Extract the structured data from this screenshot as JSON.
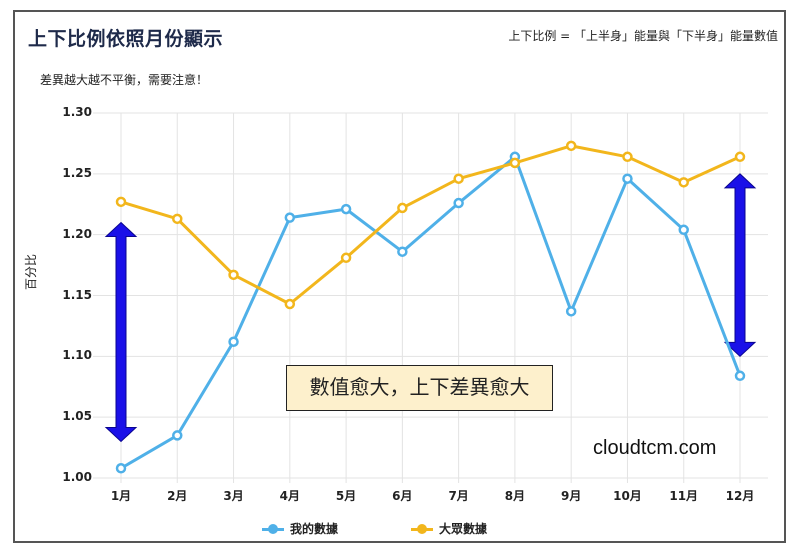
{
  "header": {
    "title": "上下比例依照月份顯示",
    "formula": "上下比例 = 「上半身」能量與「下半身」能量數值",
    "subtitle": "差異越大越不平衡，需要注意！"
  },
  "annotation": {
    "text": "數值愈大，上下差異愈大",
    "background": "#fdf0cc"
  },
  "watermark": "cloudtcm.com",
  "legend": [
    {
      "label": "我的數據",
      "color": "#4fb0e8"
    },
    {
      "label": "大眾數據",
      "color": "#f2b61c"
    }
  ],
  "arrows": {
    "color": "#1a10e8",
    "items": [
      {
        "x_category": "1月",
        "from": 1.03,
        "to": 1.21
      },
      {
        "x_category": "12月",
        "from": 1.1,
        "to": 1.25
      }
    ]
  },
  "chart_data": {
    "type": "line",
    "title": "上下比例依照月份顯示",
    "subtitle": "差異越大越不平衡，需要注意！",
    "xlabel": "",
    "ylabel": "百分比",
    "ylim": [
      1.0,
      1.3
    ],
    "yticks": [
      "1.00",
      "1.05",
      "1.10",
      "1.15",
      "1.20",
      "1.25",
      "1.30"
    ],
    "grid": true,
    "legend_position": "bottom",
    "categories": [
      "1月",
      "2月",
      "3月",
      "4月",
      "5月",
      "6月",
      "7月",
      "8月",
      "9月",
      "10月",
      "11月",
      "12月"
    ],
    "series": [
      {
        "name": "我的數據",
        "color": "#4fb0e8",
        "values": [
          1.008,
          1.035,
          1.112,
          1.214,
          1.221,
          1.186,
          1.226,
          1.264,
          1.137,
          1.246,
          1.204,
          1.084
        ]
      },
      {
        "name": "大眾數據",
        "color": "#f2b61c",
        "values": [
          1.227,
          1.213,
          1.167,
          1.143,
          1.181,
          1.222,
          1.246,
          1.259,
          1.273,
          1.264,
          1.243,
          1.264
        ]
      }
    ],
    "annotations": [
      "數值愈大，上下差異愈大",
      "cloudtcm.com"
    ]
  }
}
